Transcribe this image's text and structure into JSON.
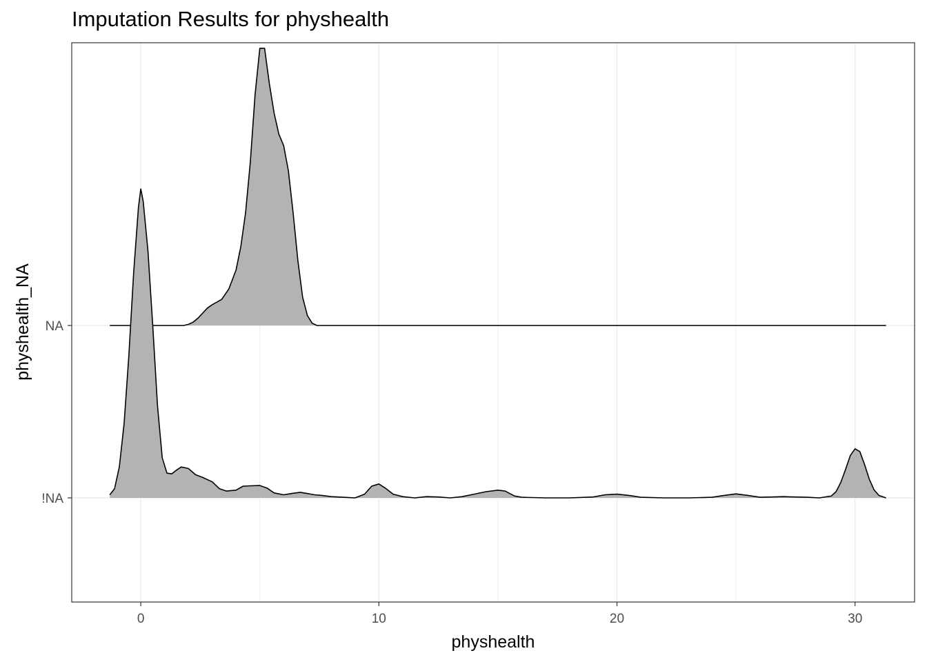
{
  "chart_data": {
    "type": "area",
    "subtype": "ridgeline-density",
    "title": "Imputation Results for physhealth",
    "xlabel": "physhealth",
    "ylabel": "physhealth_NA",
    "xlim": [
      -2.9,
      32.5
    ],
    "x_ticks": [
      0,
      10,
      20,
      30
    ],
    "y_categories": [
      "!NA",
      "NA"
    ],
    "grid": true,
    "fill_color": "#b3b3b3",
    "line_color": "#000000",
    "grid_color": "#ebebeb",
    "series": [
      {
        "name": "!NA",
        "x": [
          -1.3,
          -1.1,
          -0.9,
          -0.7,
          -0.5,
          -0.3,
          -0.1,
          0.0,
          0.1,
          0.3,
          0.5,
          0.7,
          0.9,
          1.1,
          1.3,
          1.5,
          1.7,
          2.0,
          2.3,
          2.6,
          3.0,
          3.3,
          3.6,
          4.0,
          4.3,
          4.6,
          5.0,
          5.3,
          5.6,
          6.0,
          6.4,
          6.7,
          7.0,
          7.3,
          7.6,
          8.0,
          8.5,
          9.0,
          9.4,
          9.7,
          10.0,
          10.3,
          10.6,
          11.0,
          11.5,
          12.0,
          12.5,
          13.0,
          13.5,
          14.0,
          14.5,
          15.0,
          15.3,
          15.7,
          16.0,
          17.0,
          18.0,
          19.0,
          19.5,
          20.0,
          20.5,
          21.0,
          22.0,
          23.0,
          24.0,
          24.5,
          25.0,
          25.5,
          26.0,
          26.5,
          27.0,
          27.5,
          28.0,
          28.5,
          29.0,
          29.2,
          29.4,
          29.6,
          29.8,
          30.0,
          30.2,
          30.4,
          30.6,
          30.8,
          31.0,
          31.3
        ],
        "density": [
          0.01,
          0.03,
          0.1,
          0.24,
          0.46,
          0.73,
          0.94,
          1.0,
          0.96,
          0.8,
          0.56,
          0.3,
          0.13,
          0.08,
          0.078,
          0.09,
          0.1,
          0.095,
          0.075,
          0.066,
          0.052,
          0.03,
          0.022,
          0.025,
          0.038,
          0.039,
          0.04,
          0.032,
          0.016,
          0.01,
          0.015,
          0.018,
          0.014,
          0.01,
          0.008,
          0.004,
          0.002,
          0.0,
          0.012,
          0.038,
          0.045,
          0.03,
          0.012,
          0.004,
          0.0,
          0.004,
          0.003,
          0.0,
          0.004,
          0.012,
          0.02,
          0.025,
          0.022,
          0.006,
          0.002,
          0.0,
          0.0,
          0.003,
          0.01,
          0.012,
          0.008,
          0.002,
          0.0,
          0.0,
          0.002,
          0.008,
          0.013,
          0.008,
          0.002,
          0.003,
          0.004,
          0.003,
          0.002,
          0.0,
          0.006,
          0.02,
          0.05,
          0.092,
          0.137,
          0.159,
          0.15,
          0.108,
          0.06,
          0.026,
          0.008,
          0.0
        ]
      },
      {
        "name": "NA",
        "x": [
          -1.3,
          1.0,
          1.8,
          2.0,
          2.2,
          2.4,
          2.6,
          2.8,
          3.0,
          3.2,
          3.4,
          3.7,
          4.0,
          4.2,
          4.4,
          4.6,
          4.8,
          5.0,
          5.2,
          5.4,
          5.6,
          5.8,
          6.0,
          6.2,
          6.4,
          6.6,
          6.8,
          7.0,
          7.2,
          7.4,
          7.6,
          8.0,
          31.3
        ],
        "density": [
          0.0,
          0.0,
          0.0,
          0.004,
          0.012,
          0.026,
          0.044,
          0.062,
          0.074,
          0.083,
          0.093,
          0.13,
          0.197,
          0.28,
          0.4,
          0.58,
          0.82,
          0.985,
          0.985,
          0.86,
          0.755,
          0.68,
          0.64,
          0.55,
          0.4,
          0.23,
          0.1,
          0.035,
          0.008,
          0.0,
          0.0,
          0.0,
          0.0
        ]
      }
    ]
  }
}
